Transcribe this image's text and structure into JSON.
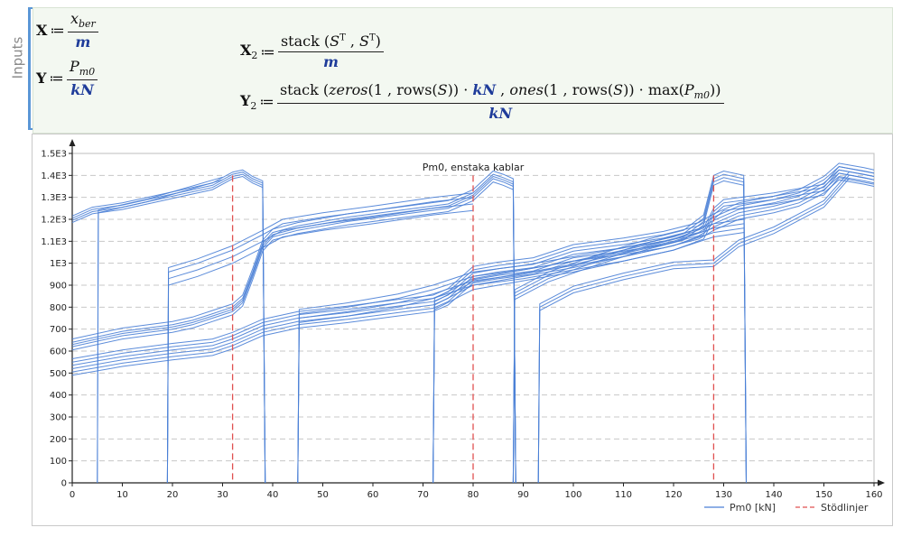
{
  "region": {
    "label": "Inputs"
  },
  "equations": {
    "x_def": {
      "lhs": "X",
      "num_var": "x",
      "num_sub": "ber",
      "den": "m"
    },
    "y_def": {
      "lhs": "Y",
      "num_var": "P",
      "num_sub": "m0",
      "den": "kN"
    },
    "x2_def": {
      "lhs": "X",
      "lhs_sub": "2",
      "func": "stack",
      "arg": "S",
      "sup": "T",
      "den": "m"
    },
    "y2_def": {
      "lhs": "Y",
      "lhs_sub": "2",
      "func_stack": "stack",
      "func_zeros": "zeros",
      "func_rows": "rows",
      "func_ones": "ones",
      "func_max": "max",
      "one": "1",
      "arg": "S",
      "unit": "kN",
      "pvar": "P",
      "psub": "m0",
      "den": "kN"
    }
  },
  "colors": {
    "series": "#4a7fd6",
    "guide": "#e05050",
    "grid": "#c8c8c8",
    "accent": "#5b97d6"
  },
  "chart_data": {
    "type": "line",
    "title": "Pm0, enstaka kablar",
    "xlabel": "",
    "ylabel": "",
    "xlim": [
      0,
      160
    ],
    "ylim": [
      0,
      1500
    ],
    "x_ticks": [
      "0",
      "10",
      "20",
      "30",
      "40",
      "50",
      "60",
      "70",
      "80",
      "90",
      "100",
      "110",
      "120",
      "130",
      "140",
      "150",
      "160"
    ],
    "y_ticks": [
      "0",
      "100",
      "200",
      "300",
      "400",
      "500",
      "600",
      "700",
      "800",
      "900",
      "1E3",
      "1.1E3",
      "1.2E3",
      "1.3E3",
      "1.4E3",
      "1.5E3"
    ],
    "grid": true,
    "legend_position": "bottom-right",
    "guide_lines_x": [
      32,
      80,
      128
    ],
    "series": [
      {
        "name": "Pm0 [kN]",
        "style": "solid",
        "groups": [
          {
            "values": [
              [
                0,
                1200
              ],
              [
                4,
                1240
              ],
              [
                10,
                1260
              ],
              [
                20,
                1310
              ],
              [
                28,
                1350
              ],
              [
                32,
                1400
              ],
              [
                34,
                1410
              ],
              [
                36,
                1380
              ],
              [
                38,
                1360
              ],
              [
                38.5,
                0
              ]
            ],
            "offsets": [
              -15,
              -5,
              5,
              15
            ]
          },
          {
            "values": [
              [
                5,
                0
              ],
              [
                5.2,
                1230
              ],
              [
                15,
                1280
              ],
              [
                30,
                1380
              ]
            ],
            "offsets": [
              0,
              12
            ]
          },
          {
            "values": [
              [
                0,
                630
              ],
              [
                10,
                680
              ],
              [
                20,
                710
              ],
              [
                24,
                730
              ],
              [
                28,
                760
              ],
              [
                32,
                790
              ],
              [
                34,
                830
              ],
              [
                36,
                950
              ],
              [
                38,
                1080
              ],
              [
                40,
                1130
              ],
              [
                45,
                1160
              ],
              [
                55,
                1200
              ],
              [
                65,
                1230
              ],
              [
                75,
                1260
              ],
              [
                80,
                1310
              ],
              [
                84,
                1395
              ],
              [
                86,
                1380
              ],
              [
                88,
                1360
              ],
              [
                88.5,
                0
              ]
            ],
            "offsets": [
              -25,
              -10,
              0,
              10,
              25
            ]
          },
          {
            "values": [
              [
                0,
                520
              ],
              [
                10,
                560
              ],
              [
                20,
                590
              ],
              [
                28,
                610
              ],
              [
                32,
                640
              ],
              [
                38,
                700
              ],
              [
                45,
                735
              ],
              [
                55,
                760
              ],
              [
                65,
                790
              ],
              [
                72,
                810
              ],
              [
                75,
                840
              ],
              [
                80,
                940
              ],
              [
                85,
                960
              ],
              [
                92,
                980
              ],
              [
                100,
                1040
              ],
              [
                110,
                1070
              ],
              [
                118,
                1100
              ],
              [
                125,
                1140
              ],
              [
                128,
                1180
              ],
              [
                133,
                1230
              ],
              [
                140,
                1260
              ],
              [
                145,
                1290
              ],
              [
                150,
                1350
              ],
              [
                153,
                1410
              ],
              [
                158,
                1390
              ],
              [
                160,
                1380
              ]
            ],
            "offsets": [
              -30,
              -15,
              0,
              15,
              30,
              45
            ]
          },
          {
            "values": [
              [
                19,
                0
              ],
              [
                19.2,
                960
              ],
              [
                25,
                1000
              ],
              [
                32,
                1060
              ],
              [
                38,
                1130
              ],
              [
                42,
                1180
              ],
              [
                50,
                1210
              ],
              [
                60,
                1240
              ],
              [
                72,
                1280
              ],
              [
                80,
                1300
              ]
            ],
            "offsets": [
              -60,
              -30,
              0,
              20
            ]
          },
          {
            "values": [
              [
                45,
                0
              ],
              [
                45.3,
                760
              ],
              [
                55,
                790
              ],
              [
                65,
                830
              ],
              [
                72,
                870
              ],
              [
                80,
                930
              ],
              [
                90,
                960
              ],
              [
                100,
                1000
              ],
              [
                110,
                1040
              ],
              [
                120,
                1090
              ],
              [
                128,
                1150
              ],
              [
                134,
                1170
              ]
            ],
            "offsets": [
              -30,
              -10,
              10,
              30
            ]
          },
          {
            "values": [
              [
                72,
                0
              ],
              [
                72.3,
                810
              ],
              [
                80,
                900
              ],
              [
                90,
                940
              ],
              [
                100,
                980
              ],
              [
                110,
                1030
              ],
              [
                120,
                1080
              ],
              [
                126,
                1130
              ],
              [
                128,
                1220
              ],
              [
                130,
                1260
              ],
              [
                140,
                1290
              ],
              [
                150,
                1330
              ],
              [
                153,
                1410
              ],
              [
                160,
                1380
              ]
            ],
            "offsets": [
              -20,
              0,
              15,
              30
            ]
          },
          {
            "values": [
              [
                88,
                0
              ],
              [
                88.3,
                860
              ],
              [
                95,
                940
              ],
              [
                105,
                1020
              ],
              [
                115,
                1090
              ],
              [
                122,
                1130
              ],
              [
                126,
                1200
              ],
              [
                128,
                1380
              ],
              [
                130,
                1400
              ],
              [
                134,
                1380
              ],
              [
                134.5,
                0
              ]
            ],
            "offsets": [
              -25,
              -10,
              5,
              20
            ]
          },
          {
            "values": [
              [
                93,
                0
              ],
              [
                93.3,
                800
              ],
              [
                100,
                880
              ],
              [
                110,
                940
              ],
              [
                120,
                990
              ],
              [
                128,
                1000
              ],
              [
                133,
                1090
              ],
              [
                140,
                1150
              ],
              [
                150,
                1270
              ],
              [
                155,
                1400
              ]
            ],
            "offsets": [
              -15,
              0,
              15
            ]
          }
        ]
      },
      {
        "name": "Stödlinjer",
        "style": "dashed"
      }
    ]
  }
}
